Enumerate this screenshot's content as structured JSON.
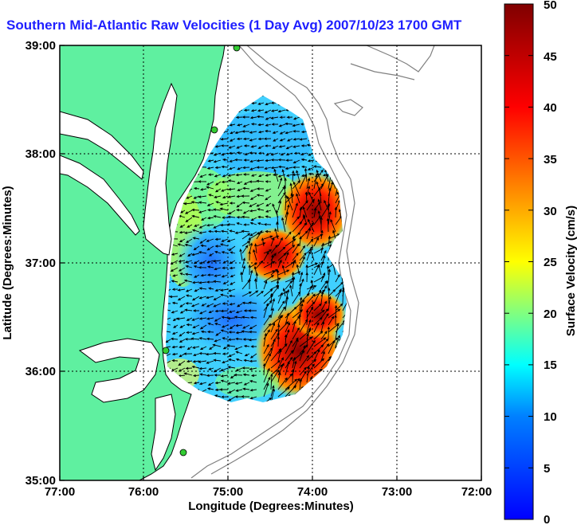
{
  "title": "Southern Mid-Atlantic Raw Velocities (1 Day Avg) 2007/10/23 1700 GMT",
  "x_axis": {
    "label": "Longitude (Degrees:Minutes)",
    "ticks": [
      "77:00",
      "76:00",
      "75:00",
      "74:00",
      "73:00",
      "72:00"
    ]
  },
  "y_axis": {
    "label": "Latitude (Degrees:Minutes)",
    "ticks": [
      "39:00",
      "38:00",
      "37:00",
      "36:00",
      "35:00"
    ]
  },
  "colorbar": {
    "label": "Surface Velocity (cm/s)",
    "ticks": [
      "0",
      "5",
      "10",
      "15",
      "20",
      "25",
      "30",
      "35",
      "40",
      "45",
      "50"
    ],
    "range": [
      0,
      50
    ],
    "colors": [
      "#0000ff",
      "#0080ff",
      "#00ffff",
      "#80ff80",
      "#ffff00",
      "#ff8000",
      "#ff0000",
      "#800000"
    ]
  },
  "colors": {
    "land": "#5ff0a0",
    "water": "#ffffff",
    "bathymetry": "#808080",
    "stations": "#33cc33",
    "title": "#1f1fff"
  }
}
